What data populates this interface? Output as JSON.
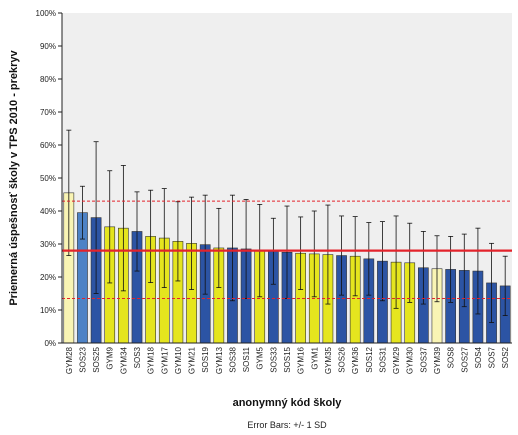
{
  "chart_data": {
    "type": "bar",
    "ylabel": "Priemerná úspešnosť školy v TPS 2010 - prekryv",
    "xlabel": "anonymný kód školy",
    "footnote": "Error Bars: +/- 1 SD",
    "ylim": [
      0,
      100
    ],
    "yticks": [
      "0%",
      "10%",
      "20%",
      "30%",
      "40%",
      "50%",
      "60%",
      "70%",
      "80%",
      "90%",
      "100%"
    ],
    "grid": false,
    "reference_lines": [
      {
        "value": 28,
        "style": "solid",
        "color": "#e3232b"
      },
      {
        "value": 43,
        "style": "dashed",
        "color": "#e3232b"
      },
      {
        "value": 13.5,
        "style": "dashed",
        "color": "#e3232b"
      }
    ],
    "colors": {
      "cream": "#f9f4b4",
      "yellow": "#e5e51e",
      "blue": "#2c54a4",
      "lightblue": "#4d82c6",
      "plot_bg": "#efefef"
    },
    "categories": [
      "GYM28",
      "SOS23",
      "SOS25",
      "GYM9",
      "GYM34",
      "SOS3",
      "GYM18",
      "GYM17",
      "GYM10",
      "GYM21",
      "SOS19",
      "GYM13",
      "SOS38",
      "SOS11",
      "GYM5",
      "SOS33",
      "SOS15",
      "GYM16",
      "GYM1",
      "GYM35",
      "SOS26",
      "GYM36",
      "SOS12",
      "SOS31",
      "GYM29",
      "GYM30",
      "SOS37",
      "GYM39",
      "SOS8",
      "SOS27",
      "SOS4",
      "SOS7",
      "SOS2"
    ],
    "values": [
      45.5,
      39.5,
      38,
      35.2,
      34.8,
      33.8,
      32.3,
      31.8,
      30.8,
      30.2,
      29.8,
      28.8,
      28.8,
      28.5,
      28,
      27.8,
      27.5,
      27.2,
      27,
      26.8,
      26.5,
      26.3,
      25.5,
      24.8,
      24.5,
      24.3,
      22.8,
      22.5,
      22.3,
      22,
      21.8,
      18.2,
      17.3
    ],
    "sd": [
      19,
      8,
      23,
      17,
      19,
      12,
      14,
      15,
      12,
      14,
      15,
      12,
      16,
      15,
      14,
      10,
      14,
      11,
      13,
      15,
      12,
      12,
      11,
      12,
      14,
      12,
      11,
      10,
      10,
      11,
      13,
      12,
      9
    ],
    "bar_colors": [
      "cream",
      "lightblue",
      "blue",
      "yellow",
      "yellow",
      "blue",
      "yellow",
      "yellow",
      "yellow",
      "yellow",
      "blue",
      "yellow",
      "blue",
      "blue",
      "yellow",
      "blue",
      "blue",
      "yellow",
      "yellow",
      "yellow",
      "blue",
      "yellow",
      "blue",
      "blue",
      "yellow",
      "yellow",
      "blue",
      "cream",
      "blue",
      "blue",
      "blue",
      "blue",
      "blue"
    ]
  }
}
